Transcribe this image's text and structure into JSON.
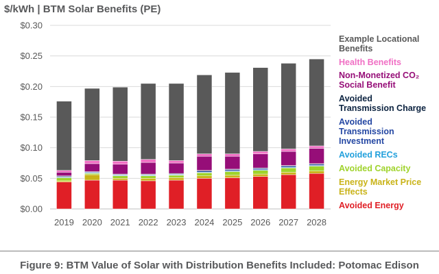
{
  "chart_data": {
    "type": "bar",
    "stacked": true,
    "title": "$/kWh | BTM Solar Benefits (PE)",
    "xlabel": "",
    "ylabel": "",
    "categories": [
      "2019",
      "2020",
      "2021",
      "2022",
      "2023",
      "2024",
      "2025",
      "2026",
      "2027",
      "2028"
    ],
    "ylim": [
      0,
      0.3
    ],
    "yticks": [
      "$0.00",
      "$0.05",
      "$0.10",
      "$0.15",
      "$0.20",
      "$0.25",
      "$0.30"
    ],
    "grid": true,
    "legend_placement": "right",
    "series": [
      {
        "name": "Avoided Energy",
        "color": "#e01f26",
        "values": [
          0.044,
          0.047,
          0.047,
          0.046,
          0.047,
          0.05,
          0.051,
          0.053,
          0.056,
          0.058
        ]
      },
      {
        "name": "Energy Market Price Effects",
        "color": "#c9b318",
        "values": [
          0.002,
          0.009,
          0.003,
          0.004,
          0.004,
          0.004,
          0.004,
          0.004,
          0.004,
          0.004
        ]
      },
      {
        "name": "Avoided Capacity",
        "color": "#9fd32b",
        "values": [
          0.005,
          0.002,
          0.004,
          0.004,
          0.004,
          0.005,
          0.006,
          0.006,
          0.007,
          0.008
        ]
      },
      {
        "name": "Avoided RECs",
        "color": "#22a0dc",
        "values": [
          0.001,
          0.001,
          0.001,
          0.001,
          0.001,
          0.001,
          0.001,
          0.001,
          0.001,
          0.001
        ]
      },
      {
        "name": "Avoided Transmission Investment",
        "color": "#2447a3",
        "values": [
          0.001,
          0.001,
          0.001,
          0.001,
          0.001,
          0.002,
          0.002,
          0.002,
          0.002,
          0.002
        ]
      },
      {
        "name": "Avoided Transmission Charge",
        "color": "#0c2340",
        "values": [
          0.001,
          0.001,
          0.001,
          0.001,
          0.001,
          0.001,
          0.001,
          0.001,
          0.001,
          0.001
        ]
      },
      {
        "name": "Non-Monetized CO2 Social Benefit",
        "color": "#960e78",
        "values": [
          0.006,
          0.013,
          0.016,
          0.019,
          0.017,
          0.023,
          0.021,
          0.023,
          0.023,
          0.025
        ]
      },
      {
        "name": "Health Benefits",
        "color": "#f06fc4",
        "values": [
          0.003,
          0.005,
          0.005,
          0.005,
          0.004,
          0.004,
          0.004,
          0.004,
          0.004,
          0.004
        ]
      },
      {
        "name": "Example Locational Benefits",
        "color": "#595959",
        "values": [
          0.113,
          0.118,
          0.121,
          0.124,
          0.126,
          0.129,
          0.133,
          0.137,
          0.14,
          0.142
        ]
      }
    ]
  },
  "legend_entries": [
    {
      "label": "Example Locational\nBenefits",
      "color": "#595959"
    },
    {
      "label": "Health Benefits",
      "color": "#f06fc4"
    },
    {
      "label": "Non-Monetized CO₂\nSocial Benefit",
      "color": "#960e78"
    },
    {
      "label": "Avoided\nTransmission Charge",
      "color": "#0c2340"
    },
    {
      "label": "Avoided\nTransmission\nInvestment",
      "color": "#2447a3"
    },
    {
      "label": "Avoided RECs",
      "color": "#22a0dc"
    },
    {
      "label": "Avoided Capacity",
      "color": "#9fd32b"
    },
    {
      "label": "Energy Market Price\nEffects",
      "color": "#c9b318"
    },
    {
      "label": "Avoided Energy",
      "color": "#e01f26"
    }
  ],
  "caption": "Figure 9: BTM Value of Solar with Distribution Benefits Included: Potomac Edison"
}
